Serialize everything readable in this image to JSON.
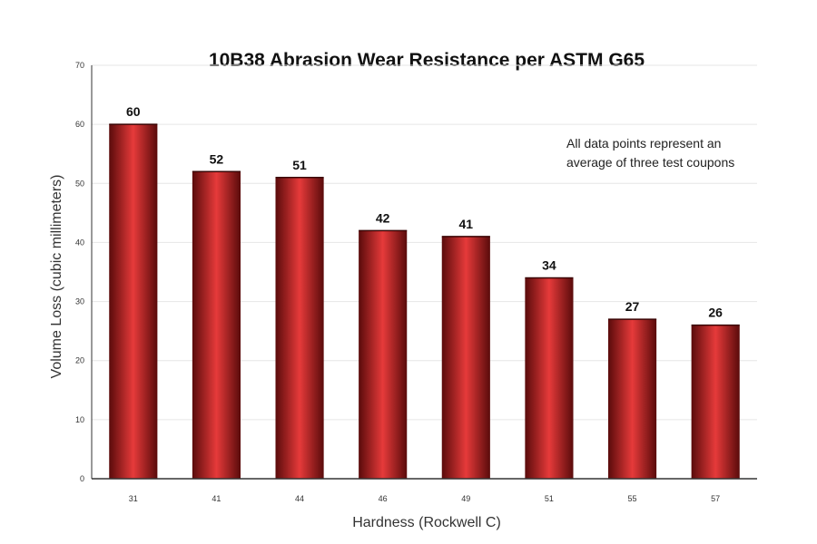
{
  "chart_data": {
    "type": "bar",
    "title": "10B38 Abrasion Wear Resistance per ASTM G65",
    "xlabel": "Hardness (Rockwell C)",
    "ylabel": "Volume Loss (cubic millimeters)",
    "categories": [
      "31",
      "41",
      "44",
      "46",
      "49",
      "51",
      "55",
      "57"
    ],
    "values": [
      60,
      52,
      51,
      42,
      41,
      34,
      27,
      26
    ],
    "data_labels": [
      "60",
      "52",
      "51",
      "42",
      "41",
      "34",
      "27",
      "26"
    ],
    "ylim": [
      0,
      70
    ],
    "yticks": [
      0,
      10,
      20,
      30,
      40,
      50,
      60,
      70
    ],
    "ytick_labels": [
      "0",
      "10",
      "20",
      "30",
      "40",
      "50",
      "60",
      "70"
    ],
    "grid": true,
    "legend": "none",
    "annotation": [
      "All data points represent an",
      "average of three test coupons"
    ],
    "colors": {
      "bar_dark": "#5a0b0b",
      "bar_mid": "#b01e1e",
      "bar_light": "#e63a3a"
    }
  }
}
